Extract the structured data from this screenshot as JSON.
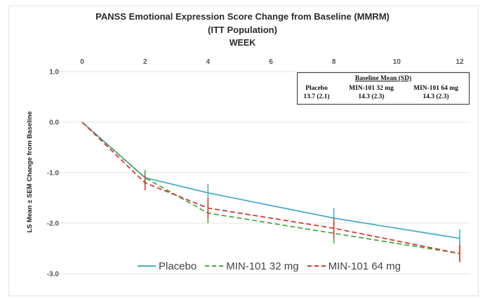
{
  "chart_data": {
    "type": "line",
    "title": "PANSS Emotional Expression Score Change from Baseline (MMRM)",
    "subtitle": "(ITT Population)",
    "xlabel": "WEEK",
    "ylabel": "LS Mean ± SEM Change from Baseline",
    "x_ticks": [
      "0",
      "2",
      "4",
      "6",
      "8",
      "10",
      "12"
    ],
    "y_ticks": [
      "1.0",
      "0.0",
      "-1.0",
      "-2.0",
      "-3.0"
    ],
    "xlim": [
      0,
      12
    ],
    "ylim": [
      -3.0,
      1.0
    ],
    "x_axis_position": "top",
    "grid": true,
    "legend_position": "bottom",
    "series": [
      {
        "name": "Placebo",
        "style": "solid",
        "color": "#4bacc6",
        "x": [
          0,
          2,
          4,
          8,
          12
        ],
        "y": [
          0.0,
          -1.1,
          -1.4,
          -1.9,
          -2.3
        ],
        "err": [
          0,
          0.15,
          0.18,
          0.2,
          0.18
        ]
      },
      {
        "name": "MIN-101 32 mg",
        "style": "dashed",
        "color": "#4ca64c",
        "x": [
          0,
          2,
          4,
          8,
          12
        ],
        "y": [
          0.0,
          -1.1,
          -1.8,
          -2.2,
          -2.6
        ],
        "err": [
          0,
          0.15,
          0.2,
          0.2,
          0.17
        ]
      },
      {
        "name": "MIN-101 64 mg",
        "style": "dashed",
        "color": "#d63b2f",
        "x": [
          0,
          2,
          4,
          8,
          12
        ],
        "y": [
          0.0,
          -1.2,
          -1.7,
          -2.1,
          -2.6
        ],
        "err": [
          0,
          0.15,
          0.2,
          0.2,
          0.17
        ]
      }
    ],
    "baseline_table": {
      "title": "Baseline Mean (SD)",
      "headers": [
        "Placebo",
        "MIN-101 32 mg",
        "MIN-101 64 mg"
      ],
      "values": [
        "13.7 (2.1)",
        "14.3 (2.3)",
        "14.3 (2.3)"
      ]
    }
  }
}
